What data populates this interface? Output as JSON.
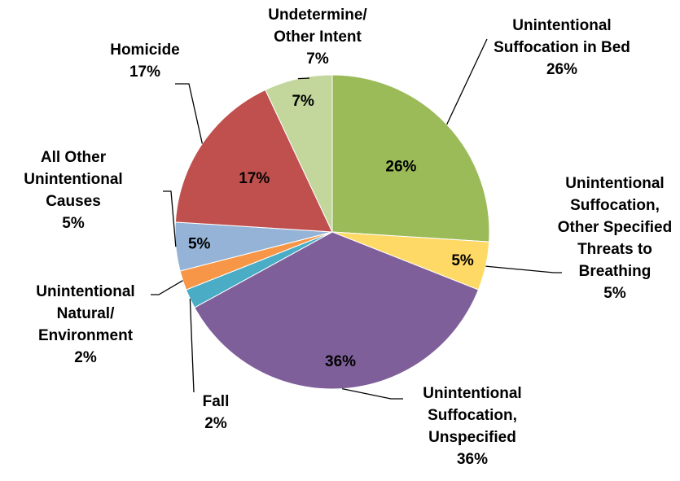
{
  "chart_data": {
    "type": "pie",
    "categories": [
      "Unintentional Suffocation in Bed",
      "Unintentional Suffocation, Other Specified Threats to Breathing",
      "Unintentional Suffocation, Unspecified",
      "Fall",
      "Unintentional Natural/ Environment",
      "All Other Unintentional Causes",
      "Homicide",
      "Undetermine/ Other Intent"
    ],
    "values": [
      26,
      5,
      36,
      2,
      2,
      5,
      17,
      7
    ],
    "value_labels": [
      "26%",
      "5%",
      "36%",
      "2%",
      "2%",
      "5%",
      "17%",
      "7%"
    ],
    "colors": [
      "#9bbb59",
      "#ffd966",
      "#7f5f9a",
      "#4bacc6",
      "#f79646",
      "#95b3d7",
      "#c0504d",
      "#c3d69b"
    ]
  }
}
